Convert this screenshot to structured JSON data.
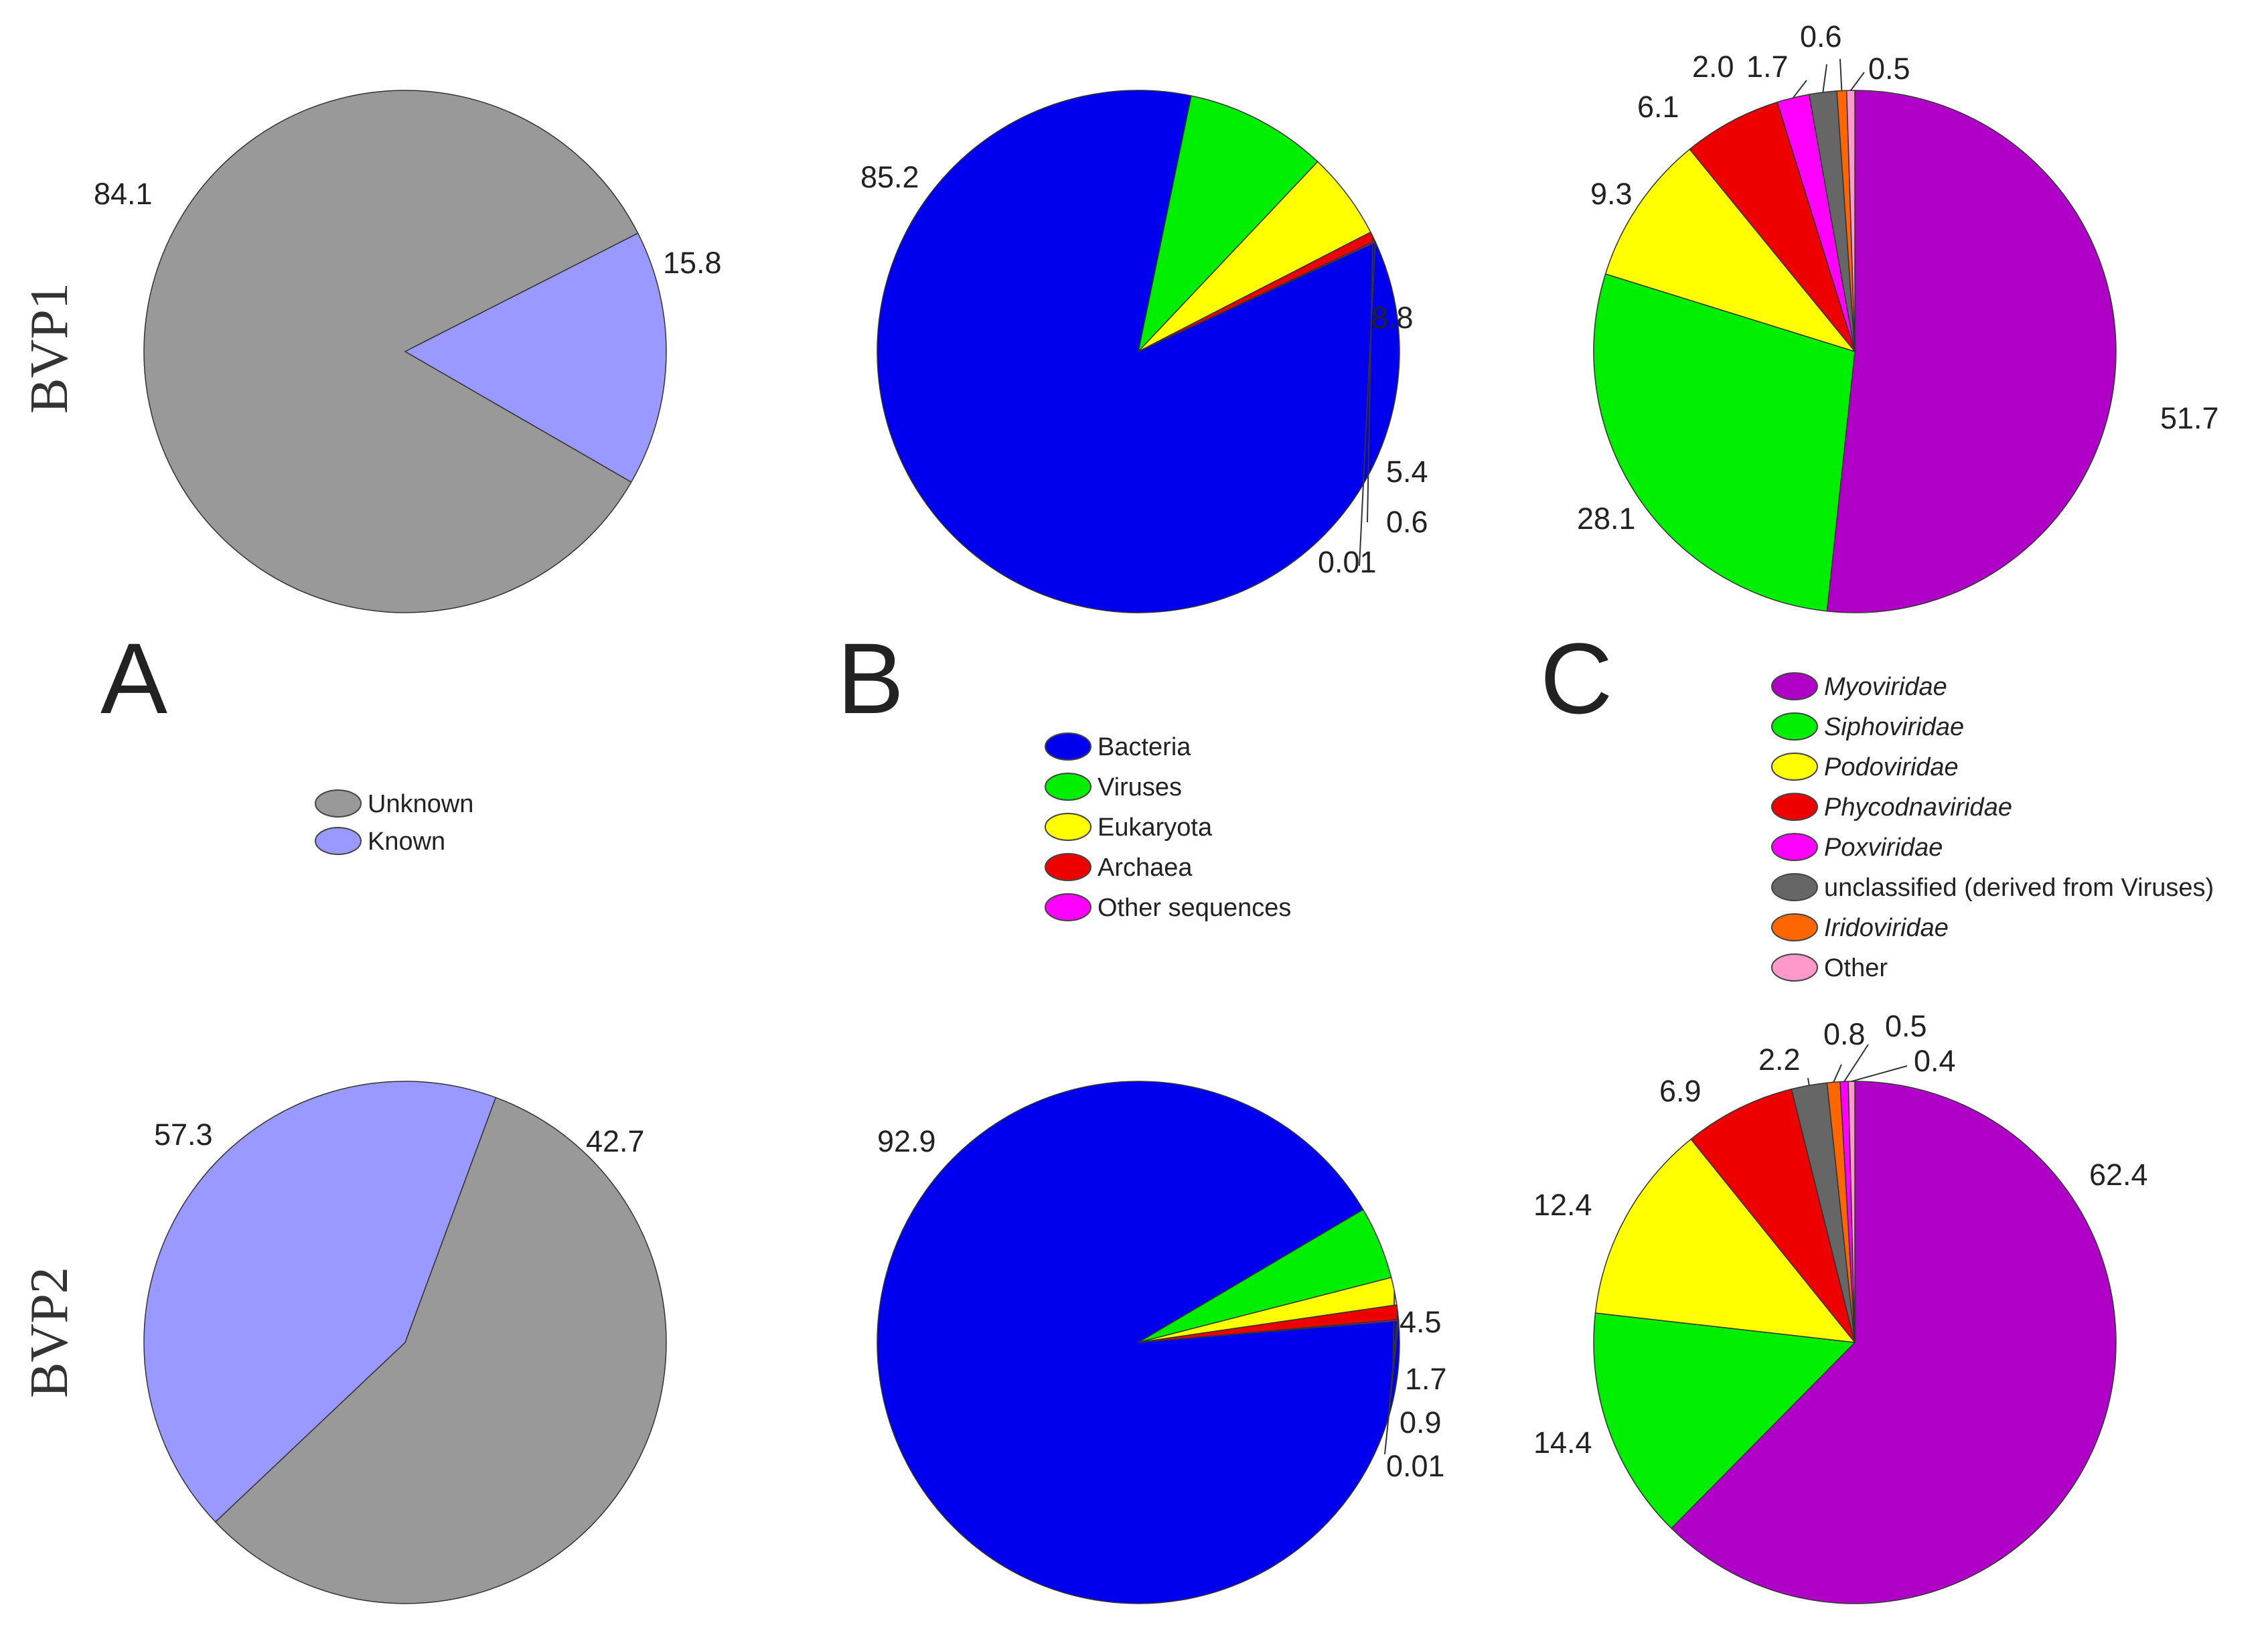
{
  "row_labels": [
    "BVP1",
    "BVP2"
  ],
  "panel_letters": [
    "A",
    "B",
    "C"
  ],
  "legends": {
    "A": [
      {
        "label": "Unknown",
        "color": "#999999",
        "italic": false
      },
      {
        "label": "Known",
        "color": "#9999ff",
        "italic": false
      }
    ],
    "B": [
      {
        "label": "Bacteria",
        "color": "#0000ee",
        "italic": false
      },
      {
        "label": "Viruses",
        "color": "#00ee00",
        "italic": false
      },
      {
        "label": "Eukaryota",
        "color": "#ffff00",
        "italic": false
      },
      {
        "label": "Archaea",
        "color": "#ee0000",
        "italic": false
      },
      {
        "label": "Other sequences",
        "color": "#ff00ff",
        "italic": false
      }
    ],
    "C": [
      {
        "label": "Myoviridae",
        "color": "#b000c8",
        "italic": true
      },
      {
        "label": "Siphoviridae",
        "color": "#00ee00",
        "italic": true
      },
      {
        "label": "Podoviridae",
        "color": "#ffff00",
        "italic": true
      },
      {
        "label": "Phycodnaviridae",
        "color": "#ee0000",
        "italic": true
      },
      {
        "label": "Poxviridae",
        "color": "#ff00ff",
        "italic": true
      },
      {
        "label": "unclassified (derived from Viruses)",
        "color": "#666666",
        "italic": false
      },
      {
        "label": "Iridoviridae",
        "color": "#ff6600",
        "italic": true
      },
      {
        "label": "Other",
        "color": "#ff99cc",
        "italic": false
      }
    ]
  },
  "chart_data": [
    {
      "type": "pie",
      "panel": "A",
      "sample": "BVP1",
      "categories": [
        "Unknown",
        "Known"
      ],
      "values": [
        84.1,
        15.8
      ],
      "labels": [
        "84.1",
        "15.8"
      ],
      "colors": [
        "#999999",
        "#9999ff"
      ]
    },
    {
      "type": "pie",
      "panel": "B",
      "sample": "BVP1",
      "categories": [
        "Bacteria",
        "Viruses",
        "Eukaryota",
        "Archaea",
        "Other sequences"
      ],
      "values": [
        85.2,
        8.8,
        5.4,
        0.6,
        0.01
      ],
      "labels": [
        "85.2",
        "8.8",
        "5.4",
        "0.6",
        "0.01"
      ],
      "colors": [
        "#0000ee",
        "#00ee00",
        "#ffff00",
        "#ee0000",
        "#ff00ff"
      ]
    },
    {
      "type": "pie",
      "panel": "C",
      "sample": "BVP1",
      "categories": [
        "Myoviridae",
        "Siphoviridae",
        "Podoviridae",
        "Phycodnaviridae",
        "Poxviridae",
        "unclassified (derived from Viruses)",
        "Iridoviridae",
        "Other"
      ],
      "values": [
        51.7,
        28.1,
        9.3,
        6.1,
        2.0,
        1.7,
        0.6,
        0.5
      ],
      "labels": [
        "51.7",
        "28.1",
        "9.3",
        "6.1",
        "2.0",
        "1.7",
        "0.6",
        "0.5"
      ],
      "colors": [
        "#b000c8",
        "#00ee00",
        "#ffff00",
        "#ee0000",
        "#ff00ff",
        "#666666",
        "#ff6600",
        "#ff99cc"
      ]
    },
    {
      "type": "pie",
      "panel": "A",
      "sample": "BVP2",
      "categories": [
        "Unknown",
        "Known"
      ],
      "values": [
        57.3,
        42.7
      ],
      "labels": [
        "57.3",
        "42.7"
      ],
      "colors": [
        "#999999",
        "#9999ff"
      ]
    },
    {
      "type": "pie",
      "panel": "B",
      "sample": "BVP2",
      "categories": [
        "Bacteria",
        "Viruses",
        "Eukaryota",
        "Archaea",
        "Other sequences"
      ],
      "values": [
        92.9,
        4.5,
        1.7,
        0.9,
        0.01
      ],
      "labels": [
        "92.9",
        "4.5",
        "1.7",
        "0.9",
        "0.01"
      ],
      "colors": [
        "#0000ee",
        "#00ee00",
        "#ffff00",
        "#ee0000",
        "#ff00ff"
      ]
    },
    {
      "type": "pie",
      "panel": "C",
      "sample": "BVP2",
      "categories": [
        "Myoviridae",
        "Siphoviridae",
        "Podoviridae",
        "Phycodnaviridae",
        "unclassified (derived from Viruses)",
        "Iridoviridae",
        "Poxviridae",
        "Other"
      ],
      "values": [
        62.4,
        14.4,
        12.4,
        6.9,
        2.2,
        0.8,
        0.5,
        0.4
      ],
      "labels": [
        "62.4",
        "14.4",
        "12.4",
        "6.9",
        "2.2",
        "0.8",
        "0.5",
        "0.4"
      ],
      "colors": [
        "#b000c8",
        "#00ee00",
        "#ffff00",
        "#ee0000",
        "#666666",
        "#ff6600",
        "#ff00ff",
        "#ff99cc"
      ]
    }
  ]
}
